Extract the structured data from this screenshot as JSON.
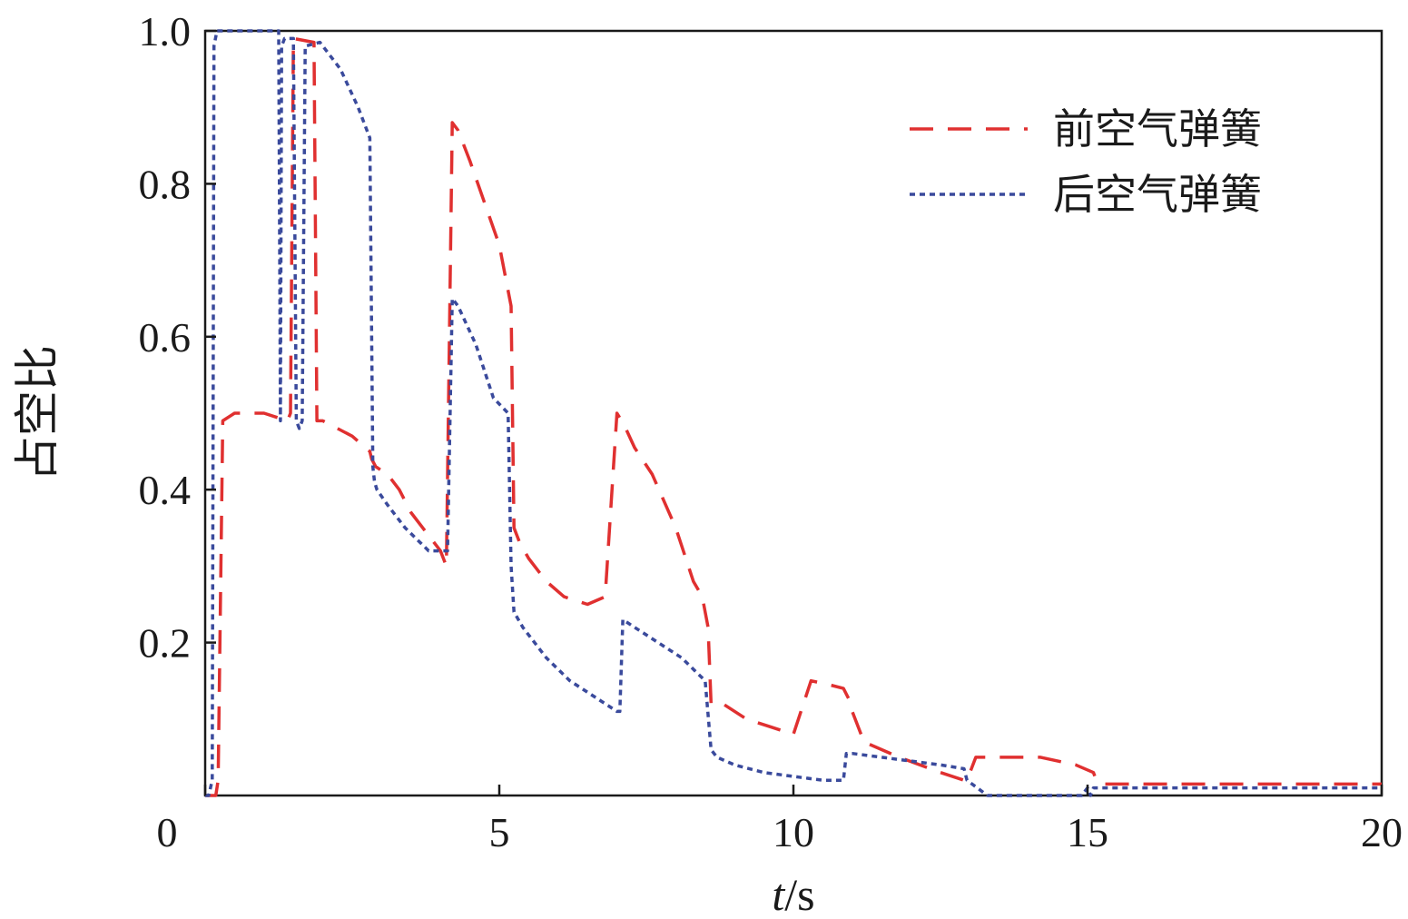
{
  "chart_data": {
    "type": "line",
    "xlabel_italic": "t",
    "xlabel_rest": "/s",
    "ylabel": "占空比",
    "xlim": [
      0,
      20
    ],
    "ylim": [
      0,
      1.0
    ],
    "xticks": [
      0,
      5,
      10,
      15,
      20
    ],
    "xtick_labels": [
      "0",
      "5",
      "10",
      "15",
      "20"
    ],
    "yticks": [
      0.2,
      0.4,
      0.6,
      0.8,
      1.0
    ],
    "ytick_labels": [
      "0.2",
      "0.4",
      "0.6",
      "0.8",
      "1.0"
    ],
    "grid": false,
    "legend_position": "top-right",
    "series": [
      {
        "name": "前空气弹簧",
        "color": "#e03030",
        "dash": "dashed",
        "x": [
          0,
          0.18,
          0.22,
          0.3,
          0.5,
          1.0,
          1.4,
          1.45,
          1.5,
          1.85,
          1.9,
          2.0,
          2.5,
          2.8,
          2.83,
          2.9,
          3.1,
          3.3,
          3.5,
          3.8,
          4.0,
          4.1,
          4.2,
          4.3,
          4.5,
          5.0,
          5.2,
          5.25,
          5.35,
          5.5,
          5.8,
          6.1,
          6.5,
          6.8,
          7.0,
          7.08,
          7.15,
          7.3,
          7.6,
          8.0,
          8.3,
          8.45,
          8.55,
          8.6,
          8.8,
          9.2,
          9.6,
          10.0,
          10.3,
          10.6,
          10.85,
          10.95,
          11.0,
          11.2,
          11.8,
          12.5,
          12.9,
          12.95,
          13.1,
          13.6,
          14.2,
          14.8,
          15.1,
          15.15,
          15.25,
          15.6,
          16,
          17,
          18,
          19,
          20
        ],
        "y": [
          0,
          0,
          0.02,
          0.49,
          0.5,
          0.5,
          0.49,
          0.5,
          0.99,
          0.985,
          0.49,
          0.49,
          0.47,
          0.45,
          0.44,
          0.43,
          0.42,
          0.4,
          0.37,
          0.34,
          0.32,
          0.3,
          0.88,
          0.87,
          0.83,
          0.72,
          0.64,
          0.35,
          0.33,
          0.31,
          0.28,
          0.26,
          0.25,
          0.26,
          0.5,
          0.49,
          0.48,
          0.455,
          0.42,
          0.35,
          0.28,
          0.26,
          0.22,
          0.12,
          0.12,
          0.1,
          0.09,
          0.08,
          0.15,
          0.145,
          0.14,
          0.125,
          0.11,
          0.07,
          0.05,
          0.03,
          0.02,
          0.02,
          0.05,
          0.05,
          0.05,
          0.04,
          0.03,
          0.02,
          0.015,
          0.015,
          0.015,
          0.015,
          0.015,
          0.015,
          0.015
        ]
      },
      {
        "name": "后空气弹簧",
        "color": "#3a4a9c",
        "dash": "dotted",
        "x": [
          0,
          0.06,
          0.12,
          0.15,
          0.2,
          0.5,
          1.0,
          1.25,
          1.28,
          1.3,
          1.35,
          1.5,
          1.55,
          1.6,
          1.65,
          1.7,
          1.95,
          2.3,
          2.6,
          2.8,
          2.85,
          2.88,
          2.92,
          3.1,
          3.4,
          3.8,
          4.1,
          4.12,
          4.2,
          4.3,
          4.6,
          4.9,
          5.15,
          5.2,
          5.25,
          5.4,
          5.8,
          6.2,
          6.6,
          7.0,
          7.05,
          7.1,
          7.3,
          7.7,
          8.1,
          8.5,
          8.6,
          8.65,
          8.7,
          9.0,
          9.5,
          10.0,
          10.5,
          10.85,
          10.9,
          10.95,
          11.0,
          11.5,
          12.0,
          12.5,
          12.9,
          12.95,
          13.3,
          13.8,
          14.4,
          14.9,
          15.0,
          15.05,
          15.1,
          15.3,
          16,
          17,
          18,
          19,
          20
        ],
        "y": [
          0,
          0,
          0.02,
          0.98,
          1.0,
          1.0,
          1.0,
          1.0,
          0.49,
          0.98,
          0.99,
          0.99,
          0.49,
          0.48,
          0.49,
          0.98,
          0.985,
          0.95,
          0.9,
          0.86,
          0.43,
          0.41,
          0.4,
          0.38,
          0.35,
          0.32,
          0.32,
          0.32,
          0.65,
          0.64,
          0.59,
          0.52,
          0.5,
          0.3,
          0.24,
          0.22,
          0.18,
          0.15,
          0.13,
          0.11,
          0.11,
          0.23,
          0.22,
          0.2,
          0.18,
          0.15,
          0.06,
          0.055,
          0.05,
          0.04,
          0.03,
          0.025,
          0.02,
          0.02,
          0.055,
          0.055,
          0.055,
          0.05,
          0.045,
          0.04,
          0.035,
          0.02,
          0.0,
          0.0,
          0.0,
          0.0,
          0.01,
          0.0,
          0.01,
          0.01,
          0.01,
          0.01,
          0.01,
          0.01,
          0.01
        ]
      }
    ]
  }
}
